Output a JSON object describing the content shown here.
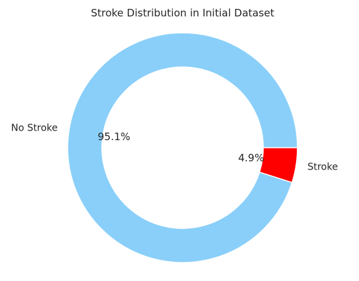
{
  "chart_data": {
    "type": "pie",
    "style": "donut",
    "title": "Stroke Distribution in Initial Dataset",
    "start_angle_deg": 0,
    "direction": "counterclockwise",
    "slices": [
      {
        "label": "No Stroke",
        "value": 95.1,
        "value_label": "95.1%",
        "color": "#89cff9"
      },
      {
        "label": "Stroke",
        "value": 4.9,
        "value_label": "4.9%",
        "color": "#ff0000"
      }
    ],
    "edge_color": "#ffffff"
  }
}
